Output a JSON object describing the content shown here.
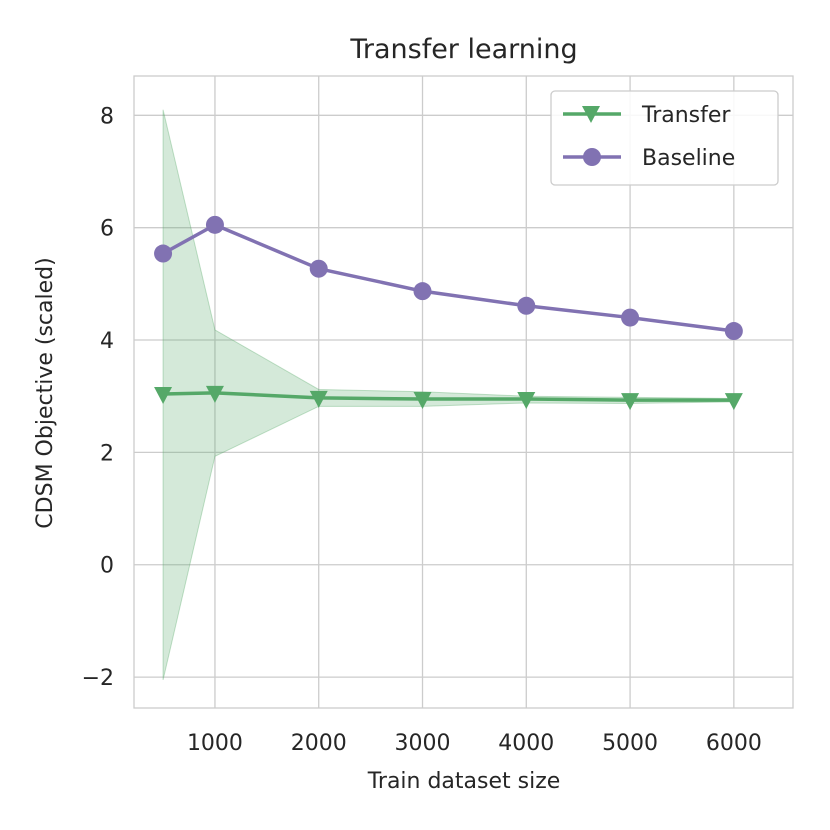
{
  "chart_data": {
    "type": "line",
    "title": "Transfer learning",
    "xlabel": "Train dataset size",
    "ylabel": "CDSM Objective (scaled)",
    "xlim": [
      220,
      6570
    ],
    "ylim": [
      -2.55,
      8.7
    ],
    "xticks": [
      1000,
      2000,
      3000,
      4000,
      5000,
      6000
    ],
    "xtick_labels": [
      "1000",
      "2000",
      "3000",
      "4000",
      "5000",
      "6000"
    ],
    "yticks": [
      -2,
      0,
      2,
      4,
      6,
      8
    ],
    "ytick_labels": [
      "−2",
      "0",
      "2",
      "4",
      "6",
      "8"
    ],
    "grid": true,
    "legend_position": "top-right",
    "x": [
      500,
      1000,
      2000,
      3000,
      4000,
      5000,
      6000
    ],
    "series": [
      {
        "name": "Transfer",
        "color": "#55a868",
        "marker": "triangle-down",
        "values": [
          3.04,
          3.06,
          2.97,
          2.95,
          2.95,
          2.93,
          2.93
        ],
        "band_upper": [
          8.1,
          4.18,
          3.12,
          3.08,
          3.0,
          2.98,
          2.96
        ],
        "band_lower": [
          -2.05,
          1.93,
          2.82,
          2.82,
          2.88,
          2.87,
          2.9
        ]
      },
      {
        "name": "Baseline",
        "color": "#8172b2",
        "marker": "circle",
        "values": [
          5.54,
          6.05,
          5.27,
          4.87,
          4.61,
          4.4,
          4.16
        ]
      }
    ]
  }
}
